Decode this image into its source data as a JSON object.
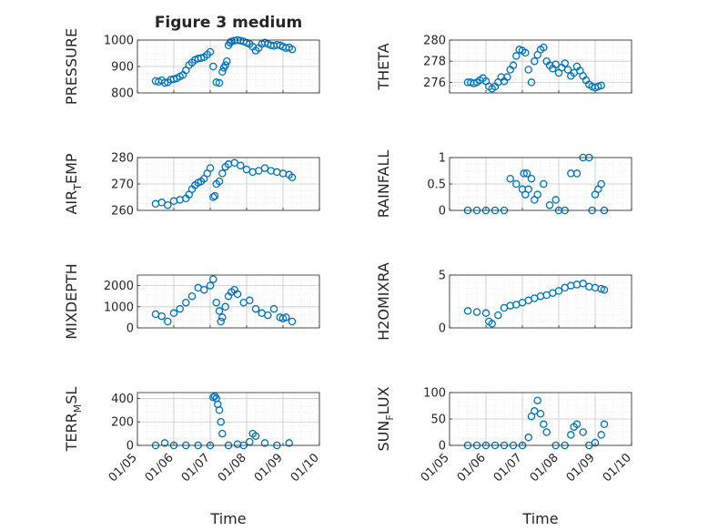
{
  "figure": {
    "title": "Figure 3 medium",
    "xlabel": "Time",
    "x_ticks": [
      "01/05",
      "01/06",
      "01/07",
      "01/08",
      "01/09",
      "01/10"
    ],
    "marker_color": "#0072BD"
  },
  "chart_data": [
    {
      "type": "scatter",
      "ylabel": "PRESSURE",
      "ylim": [
        800,
        1000
      ],
      "yticks": [
        800,
        900,
        1000
      ],
      "grid": true,
      "x": [
        "01/05 12:00",
        "01/05 14:00",
        "01/05 16:00",
        "01/05 18:00",
        "01/05 20:00",
        "01/05 22:00",
        "01/06 00:00",
        "01/06 02:00",
        "01/06 04:00",
        "01/06 06:00",
        "01/06 08:00",
        "01/06 10:00",
        "01/06 12:00",
        "01/06 14:00",
        "01/06 16:00",
        "01/06 18:00",
        "01/06 20:00",
        "01/06 22:00",
        "01/07 00:00",
        "01/07 02:00",
        "01/07 04:00",
        "01/07 06:00",
        "01/07 08:00",
        "01/07 09:00",
        "01/07 10:00",
        "01/07 11:00",
        "01/07 12:00",
        "01/07 13:00",
        "01/07 14:00",
        "01/07 16:00",
        "01/07 18:00",
        "01/07 20:00",
        "01/07 22:00",
        "01/08 00:00",
        "01/08 02:00",
        "01/08 04:00",
        "01/08 06:00",
        "01/08 08:00",
        "01/08 10:00",
        "01/08 12:00",
        "01/08 14:00",
        "01/08 16:00",
        "01/08 18:00",
        "01/08 20:00",
        "01/08 22:00",
        "01/09 00:00",
        "01/09 02:00",
        "01/09 04:00",
        "01/09 06:00"
      ],
      "y": [
        845,
        842,
        848,
        838,
        840,
        850,
        852,
        855,
        862,
        868,
        885,
        905,
        915,
        925,
        930,
        932,
        935,
        945,
        955,
        900,
        840,
        838,
        880,
        895,
        905,
        920,
        980,
        990,
        995,
        998,
        1000,
        998,
        995,
        990,
        985,
        975,
        960,
        970,
        985,
        990,
        985,
        980,
        978,
        982,
        980,
        975,
        970,
        972,
        965
      ]
    },
    {
      "type": "scatter",
      "ylabel": "THETA",
      "ylim": [
        275,
        280
      ],
      "yticks": [
        276,
        278,
        280
      ],
      "grid": true,
      "x": [
        "01/05 12:00",
        "01/05 14:00",
        "01/05 16:00",
        "01/05 18:00",
        "01/05 20:00",
        "01/05 22:00",
        "01/06 00:00",
        "01/06 02:00",
        "01/06 04:00",
        "01/06 06:00",
        "01/06 08:00",
        "01/06 10:00",
        "01/06 12:00",
        "01/06 14:00",
        "01/06 16:00",
        "01/06 18:00",
        "01/06 20:00",
        "01/06 22:00",
        "01/07 00:00",
        "01/07 02:00",
        "01/07 04:00",
        "01/07 06:00",
        "01/07 08:00",
        "01/07 10:00",
        "01/07 12:00",
        "01/07 14:00",
        "01/07 16:00",
        "01/07 18:00",
        "01/07 20:00",
        "01/07 22:00",
        "01/08 00:00",
        "01/08 02:00",
        "01/08 04:00",
        "01/08 06:00",
        "01/08 08:00",
        "01/08 10:00",
        "01/08 12:00",
        "01/08 14:00",
        "01/08 16:00",
        "01/08 18:00",
        "01/08 20:00",
        "01/08 22:00",
        "01/09 00:00",
        "01/09 02:00",
        "01/09 04:00"
      ],
      "y": [
        276,
        276,
        275.9,
        276,
        276.2,
        276.4,
        276.1,
        275.6,
        275.4,
        275.6,
        276,
        276.5,
        276.1,
        276.5,
        277.2,
        277.6,
        278.5,
        279.1,
        279,
        278.8,
        277.2,
        276,
        278,
        278.6,
        279.1,
        279.3,
        278,
        277.6,
        277.3,
        277.7,
        276.9,
        277.4,
        277.8,
        277.2,
        276.6,
        276.9,
        277.5,
        277.1,
        276.6,
        276.2,
        275.8,
        275.6,
        275.5,
        275.6,
        275.7
      ]
    },
    {
      "type": "scatter",
      "ylabel": "AIR_TEMP",
      "ylim": [
        260,
        280
      ],
      "yticks": [
        260,
        270,
        280
      ],
      "grid": true,
      "x": [
        "01/05 12:00",
        "01/05 16:00",
        "01/05 20:00",
        "01/06 00:00",
        "01/06 04:00",
        "01/06 08:00",
        "01/06 10:00",
        "01/06 12:00",
        "01/06 14:00",
        "01/06 16:00",
        "01/06 18:00",
        "01/06 20:00",
        "01/06 22:00",
        "01/07 00:00",
        "01/07 02:00",
        "01/07 03:00",
        "01/07 04:00",
        "01/07 06:00",
        "01/07 08:00",
        "01/07 10:00",
        "01/07 12:00",
        "01/07 16:00",
        "01/07 20:00",
        "01/08 00:00",
        "01/08 04:00",
        "01/08 08:00",
        "01/08 12:00",
        "01/08 16:00",
        "01/08 20:00",
        "01/09 00:00",
        "01/09 04:00",
        "01/09 06:00"
      ],
      "y": [
        262.5,
        263,
        262,
        263.5,
        264,
        264.5,
        266,
        268,
        269.5,
        270.5,
        271,
        272,
        274,
        276,
        265,
        265.5,
        270,
        271,
        274,
        276.5,
        277.5,
        278,
        277,
        275.5,
        274.5,
        275,
        276,
        275,
        274.5,
        274,
        273.5,
        272.5
      ]
    },
    {
      "type": "scatter",
      "ylabel": "RAINFALL",
      "ylim": [
        0,
        1
      ],
      "yticks": [
        0,
        0.5,
        1
      ],
      "grid": true,
      "x": [
        "01/05 12:00",
        "01/05 18:00",
        "01/06 00:00",
        "01/06 06:00",
        "01/06 12:00",
        "01/06 16:00",
        "01/06 20:00",
        "01/07 00:00",
        "01/07 01:00",
        "01/07 02:00",
        "01/07 03:00",
        "01/07 04:00",
        "01/07 06:00",
        "01/07 08:00",
        "01/07 10:00",
        "01/07 14:00",
        "01/07 18:00",
        "01/07 22:00",
        "01/08 00:00",
        "01/08 04:00",
        "01/08 08:00",
        "01/08 12:00",
        "01/08 16:00",
        "01/08 20:00",
        "01/08 22:00",
        "01/09 00:00",
        "01/09 02:00",
        "01/09 04:00",
        "01/09 06:00"
      ],
      "y": [
        0,
        0,
        0,
        0,
        0,
        0.6,
        0.5,
        0.4,
        0.7,
        0.3,
        0.7,
        0.4,
        0.6,
        0.2,
        0.3,
        0.5,
        0.1,
        0.2,
        0,
        0,
        0.7,
        0.7,
        1,
        1,
        0,
        0.3,
        0.4,
        0.5,
        0
      ]
    },
    {
      "type": "scatter",
      "ylabel": "MIXDEPTH",
      "ylim": [
        0,
        2500
      ],
      "yticks": [
        0,
        1000,
        2000
      ],
      "grid": true,
      "x": [
        "01/05 12:00",
        "01/05 16:00",
        "01/05 20:00",
        "01/06 00:00",
        "01/06 04:00",
        "01/06 08:00",
        "01/06 12:00",
        "01/06 16:00",
        "01/06 20:00",
        "01/07 00:00",
        "01/07 02:00",
        "01/07 04:00",
        "01/07 06:00",
        "01/07 07:00",
        "01/07 08:00",
        "01/07 10:00",
        "01/07 12:00",
        "01/07 14:00",
        "01/07 16:00",
        "01/07 18:00",
        "01/07 22:00",
        "01/08 02:00",
        "01/08 06:00",
        "01/08 10:00",
        "01/08 14:00",
        "01/08 18:00",
        "01/08 22:00",
        "01/09 00:00",
        "01/09 02:00",
        "01/09 06:00"
      ],
      "y": [
        650,
        550,
        300,
        700,
        900,
        1200,
        1500,
        1900,
        1800,
        2000,
        2300,
        1200,
        800,
        300,
        500,
        1000,
        1500,
        1700,
        1800,
        1600,
        1200,
        1300,
        900,
        700,
        600,
        900,
        500,
        450,
        500,
        300
      ]
    },
    {
      "type": "scatter",
      "ylabel": "H2OMIXRA",
      "ylim": [
        0,
        5
      ],
      "yticks": [
        0,
        5
      ],
      "grid": true,
      "x": [
        "01/05 12:00",
        "01/05 18:00",
        "01/06 00:00",
        "01/06 02:00",
        "01/06 04:00",
        "01/06 08:00",
        "01/06 12:00",
        "01/06 16:00",
        "01/06 20:00",
        "01/07 00:00",
        "01/07 04:00",
        "01/07 08:00",
        "01/07 12:00",
        "01/07 16:00",
        "01/07 20:00",
        "01/08 00:00",
        "01/08 04:00",
        "01/08 08:00",
        "01/08 12:00",
        "01/08 16:00",
        "01/08 20:00",
        "01/09 00:00",
        "01/09 04:00",
        "01/09 06:00"
      ],
      "y": [
        1.6,
        1.5,
        1.4,
        0.6,
        0.4,
        1.2,
        1.9,
        2.1,
        2.2,
        2.4,
        2.6,
        2.8,
        3,
        3.1,
        3.3,
        3.5,
        3.8,
        4,
        4.1,
        4.2,
        3.9,
        3.8,
        3.7,
        3.6
      ]
    },
    {
      "type": "scatter",
      "ylabel": "TERR_MSL",
      "ylim": [
        0,
        450
      ],
      "yticks": [
        0,
        200,
        400
      ],
      "grid": true,
      "x": [
        "01/05 12:00",
        "01/05 18:00",
        "01/06 00:00",
        "01/06 08:00",
        "01/06 16:00",
        "01/07 00:00",
        "01/07 02:00",
        "01/07 03:00",
        "01/07 04:00",
        "01/07 05:00",
        "01/07 06:00",
        "01/07 07:00",
        "01/07 08:00",
        "01/07 12:00",
        "01/07 18:00",
        "01/07 22:00",
        "01/08 02:00",
        "01/08 04:00",
        "01/08 06:00",
        "01/08 12:00",
        "01/08 20:00",
        "01/09 04:00"
      ],
      "y": [
        0,
        20,
        0,
        0,
        0,
        0,
        410,
        420,
        400,
        350,
        300,
        200,
        100,
        0,
        10,
        0,
        30,
        100,
        80,
        20,
        0,
        20
      ]
    },
    {
      "type": "scatter",
      "ylabel": "SUN_FLUX",
      "ylim": [
        0,
        100
      ],
      "yticks": [
        0,
        50,
        100
      ],
      "grid": true,
      "x": [
        "01/05 12:00",
        "01/05 18:00",
        "01/06 00:00",
        "01/06 06:00",
        "01/06 12:00",
        "01/06 18:00",
        "01/07 00:00",
        "01/07 04:00",
        "01/07 06:00",
        "01/07 08:00",
        "01/07 10:00",
        "01/07 12:00",
        "01/07 14:00",
        "01/07 16:00",
        "01/07 22:00",
        "01/08 04:00",
        "01/08 08:00",
        "01/08 10:00",
        "01/08 12:00",
        "01/08 16:00",
        "01/08 20:00",
        "01/09 00:00",
        "01/09 04:00",
        "01/09 06:00"
      ],
      "y": [
        0,
        0,
        0,
        0,
        0,
        0,
        0,
        15,
        55,
        65,
        85,
        60,
        40,
        25,
        0,
        0,
        20,
        35,
        40,
        25,
        0,
        5,
        20,
        40
      ]
    }
  ]
}
